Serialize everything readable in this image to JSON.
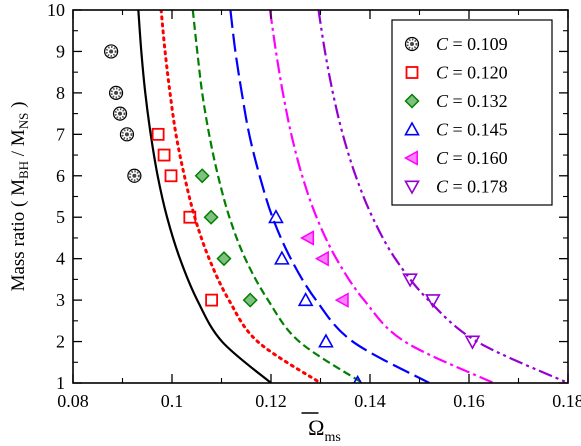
{
  "chart_data": {
    "type": "scatter",
    "xlim": [
      0.08,
      0.18
    ],
    "ylim": [
      1,
      10
    ],
    "xticks": [
      "0.08",
      "0.1",
      "0.12",
      "0.14",
      "0.16",
      "0.18"
    ],
    "yticks": [
      "1",
      "2",
      "3",
      "4",
      "5",
      "6",
      "7",
      "8",
      "9",
      "10"
    ],
    "xlabel": {
      "main": "Ω",
      "sub": "ms"
    },
    "ylabel": {
      "main": "Mass ratio  ( M",
      "sub1": "BH",
      "mid": " / M",
      "sub2": "NS",
      "end": " )"
    },
    "legend": {
      "position": "top-right",
      "prefix": "C",
      "eq": " = "
    },
    "series": [
      {
        "name": "0.109",
        "color": "#000000",
        "marker": "circle",
        "dash": "",
        "points": [
          [
            0.0877,
            9
          ],
          [
            0.0887,
            8
          ],
          [
            0.0895,
            7.5
          ],
          [
            0.0909,
            7
          ],
          [
            0.0924,
            6
          ]
        ],
        "curve": [
          [
            0.0932,
            10
          ],
          [
            0.0938,
            9
          ],
          [
            0.0946,
            8
          ],
          [
            0.0957,
            7
          ],
          [
            0.0971,
            6
          ],
          [
            0.099,
            5
          ],
          [
            0.1016,
            4
          ],
          [
            0.1051,
            3
          ],
          [
            0.1101,
            2
          ],
          [
            0.12,
            1
          ]
        ]
      },
      {
        "name": "0.120",
        "color": "#ff0000",
        "marker": "square",
        "dash": "2,5",
        "points": [
          [
            0.0972,
            7
          ],
          [
            0.0984,
            6.5
          ],
          [
            0.0998,
            6
          ],
          [
            0.1036,
            5
          ],
          [
            0.108,
            3
          ]
        ],
        "curve": [
          [
            0.0978,
            10
          ],
          [
            0.0986,
            9
          ],
          [
            0.0996,
            8
          ],
          [
            0.1008,
            7
          ],
          [
            0.1025,
            6
          ],
          [
            0.1046,
            5
          ],
          [
            0.1075,
            4
          ],
          [
            0.1115,
            3
          ],
          [
            0.1173,
            2
          ],
          [
            0.13,
            1
          ]
        ]
      },
      {
        "name": "0.132",
        "color": "#008000",
        "marker": "diamond",
        "dash": "8,4",
        "points": [
          [
            0.1061,
            6
          ],
          [
            0.1079,
            5
          ],
          [
            0.1105,
            4
          ],
          [
            0.1158,
            3
          ]
        ],
        "curve": [
          [
            0.1042,
            10
          ],
          [
            0.1051,
            9
          ],
          [
            0.1061,
            8
          ],
          [
            0.1075,
            7
          ],
          [
            0.1093,
            6
          ],
          [
            0.1116,
            5
          ],
          [
            0.1148,
            4
          ],
          [
            0.1194,
            3
          ],
          [
            0.1257,
            2
          ],
          [
            0.1385,
            1
          ]
        ]
      },
      {
        "name": "0.145",
        "color": "#0000ff",
        "marker": "triangle-up",
        "dash": "18,6",
        "points": [
          [
            0.121,
            5
          ],
          [
            0.1222,
            4
          ],
          [
            0.127,
            3
          ],
          [
            0.1311,
            2
          ],
          [
            0.1375,
            1
          ]
        ],
        "curve": [
          [
            0.1118,
            10
          ],
          [
            0.1128,
            9
          ],
          [
            0.1141,
            8
          ],
          [
            0.1156,
            7
          ],
          [
            0.1177,
            6
          ],
          [
            0.1203,
            5
          ],
          [
            0.124,
            4
          ],
          [
            0.1291,
            3
          ],
          [
            0.1365,
            2
          ],
          [
            0.152,
            1
          ]
        ]
      },
      {
        "name": "0.160",
        "color": "#ff00ff",
        "marker": "triangle-left",
        "dash": "14,4,3,4",
        "points": [
          [
            0.1275,
            4.5
          ],
          [
            0.1305,
            4
          ],
          [
            0.1345,
            3
          ]
        ],
        "curve": [
          [
            0.1198,
            10
          ],
          [
            0.121,
            9
          ],
          [
            0.1224,
            8
          ],
          [
            0.1241,
            7
          ],
          [
            0.1263,
            6
          ],
          [
            0.1292,
            5
          ],
          [
            0.1332,
            4
          ],
          [
            0.1388,
            3
          ],
          [
            0.147,
            2
          ],
          [
            0.165,
            1
          ]
        ]
      },
      {
        "name": "0.178",
        "color": "#9400d3",
        "marker": "triangle-down",
        "dash": "14,4,3,4,3,4",
        "points": [
          [
            0.1481,
            3.5
          ],
          [
            0.1527,
            3
          ],
          [
            0.1607,
            2
          ]
        ],
        "curve": [
          [
            0.1296,
            10
          ],
          [
            0.1309,
            9
          ],
          [
            0.1325,
            8
          ],
          [
            0.1345,
            7
          ],
          [
            0.1371,
            6
          ],
          [
            0.1405,
            5
          ],
          [
            0.1451,
            4
          ],
          [
            0.1518,
            3
          ],
          [
            0.1616,
            2
          ],
          [
            0.18,
            1
          ]
        ]
      }
    ]
  }
}
